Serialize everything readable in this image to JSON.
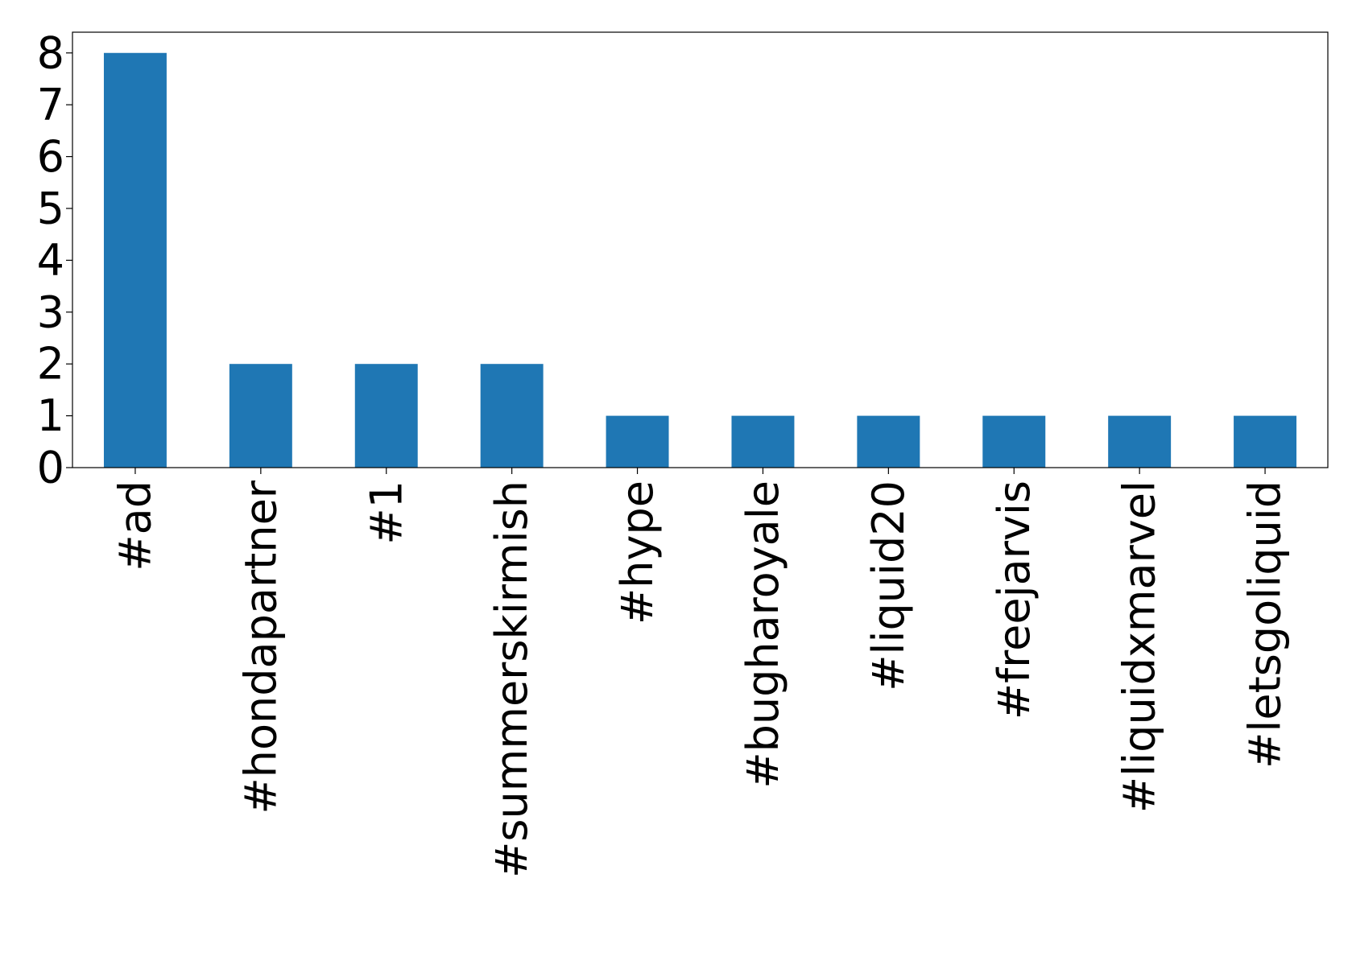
{
  "chart_data": {
    "type": "bar",
    "categories": [
      "#ad",
      "#hondapartner",
      "#1",
      "#summerskirmish",
      "#hype",
      "#bugharoyale",
      "#liquid20",
      "#freejarvis",
      "#liquidxmarvel",
      "#letsgoliquid"
    ],
    "values": [
      8,
      2,
      2,
      2,
      1,
      1,
      1,
      1,
      1,
      1
    ],
    "color": "#1f77b4",
    "ylim": [
      0,
      8.4
    ],
    "yticks": [
      0,
      1,
      2,
      3,
      4,
      5,
      6,
      7,
      8
    ],
    "grid": false
  }
}
